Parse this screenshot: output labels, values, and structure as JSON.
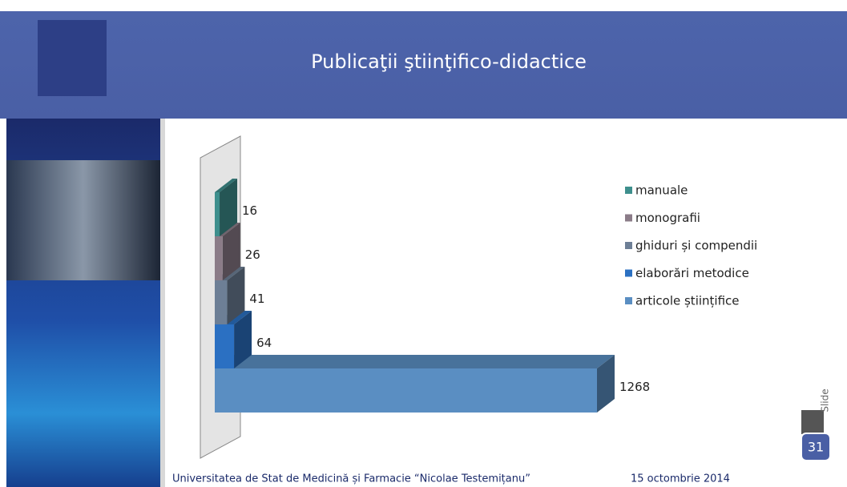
{
  "header": {
    "title": "Publicaţii ştiinţifico-didactice"
  },
  "chart_data": {
    "type": "bar",
    "orientation": "horizontal",
    "three_d": true,
    "categories": [
      "articole științifice",
      "elaborări metodice",
      "ghiduri și compendii",
      "monografii",
      "manuale"
    ],
    "values": [
      1268,
      64,
      41,
      26,
      16
    ],
    "colors": [
      "#5a8ec2",
      "#2b70c2",
      "#6d7f96",
      "#8b7c88",
      "#3e8f8d"
    ],
    "legend": "right"
  },
  "footer": {
    "institution": "Universitatea de Stat de Medicină și Farmacie “Nicolae Testemițanu”",
    "date": "15 octombrie 2014",
    "page_number": "31",
    "slide_label": "Slide"
  }
}
